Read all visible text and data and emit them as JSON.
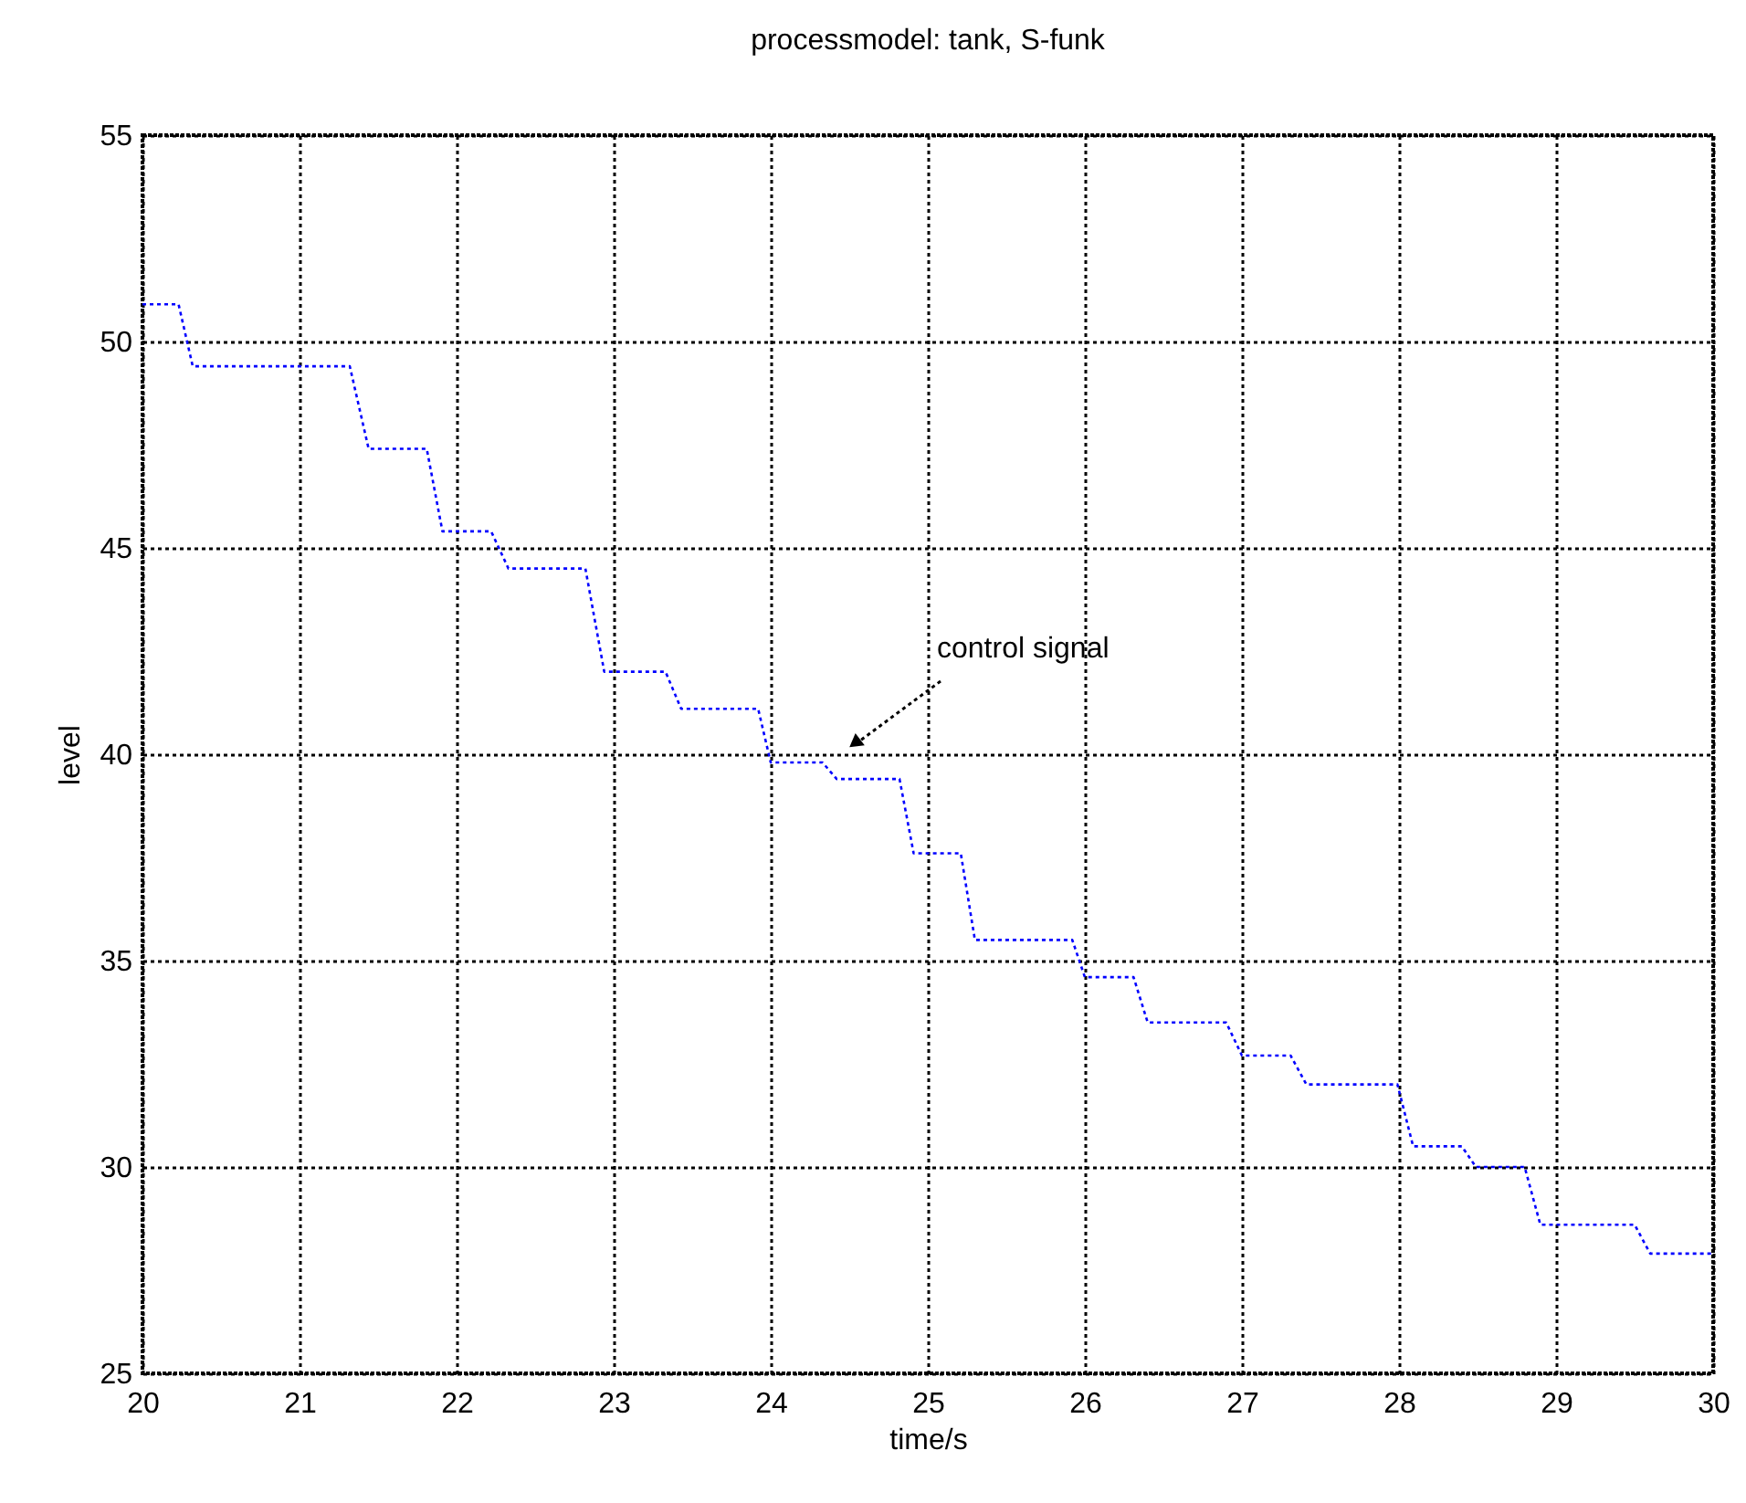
{
  "chart_data": {
    "type": "line",
    "title": "processmodel: tank, S-funk",
    "xlabel": "time/s",
    "ylabel": "level",
    "x": [
      20,
      20.23,
      20.32,
      21.32,
      21.44,
      21.81,
      21.91,
      22.22,
      22.33,
      22.82,
      22.94,
      23.33,
      23.43,
      23.92,
      24.0,
      24.33,
      24.42,
      24.82,
      24.91,
      25.21,
      25.3,
      25.92,
      26.0,
      26.31,
      26.4,
      26.9,
      27.0,
      27.31,
      27.41,
      27.99,
      28.09,
      28.4,
      28.49,
      28.8,
      28.9,
      29.5,
      29.6,
      30
    ],
    "series": [
      {
        "color": "#0000ff",
        "values": [
          50.9,
          50.9,
          49.4,
          49.4,
          47.4,
          47.4,
          45.4,
          45.4,
          44.5,
          44.5,
          42.0,
          42.0,
          41.1,
          41.1,
          39.8,
          39.8,
          39.4,
          39.4,
          37.6,
          37.6,
          35.5,
          35.5,
          34.6,
          34.6,
          33.5,
          33.5,
          32.7,
          32.7,
          32.0,
          32.0,
          30.5,
          30.5,
          30.0,
          30.0,
          28.6,
          28.6,
          27.9,
          27.9
        ]
      }
    ],
    "xlim": [
      20,
      30
    ],
    "xticks": [
      20,
      21,
      22,
      23,
      24,
      25,
      26,
      27,
      28,
      29,
      30
    ],
    "ylim": [
      25,
      55
    ],
    "yticks": [
      25,
      30,
      35,
      40,
      45,
      50,
      55
    ],
    "grid": true,
    "line_style": "dotted",
    "annotations": [
      "control signal"
    ]
  }
}
